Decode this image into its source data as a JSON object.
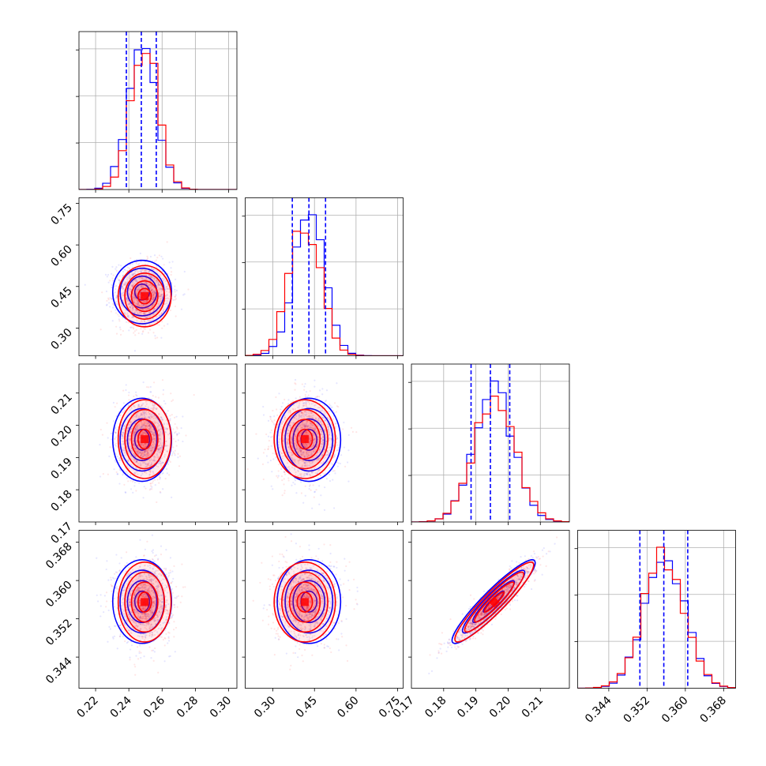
{
  "chart_data": {
    "type": "corner",
    "parameters": [
      {
        "range": [
          0.21,
          0.305
        ],
        "ticks": [
          "0.22",
          "0.24",
          "0.26",
          "0.28",
          "0.30"
        ]
      },
      {
        "range": [
          0.2,
          0.77
        ],
        "ticks": [
          "0.30",
          "0.45",
          "0.60",
          "0.75"
        ]
      },
      {
        "range": [
          0.17,
          0.219
        ],
        "ticks": [
          "0.17",
          "0.18",
          "0.19",
          "0.20",
          "0.21"
        ]
      },
      {
        "range": [
          0.3375,
          0.3705
        ],
        "ticks": [
          "0.344",
          "0.352",
          "0.360",
          "0.368"
        ]
      }
    ],
    "series": [
      {
        "color": "#0000ff",
        "means": [
          0.248,
          0.43,
          0.1955,
          0.3556
        ],
        "sds": [
          0.0085,
          0.055,
          0.0062,
          0.0042
        ],
        "correlations": [
          [
            0,
            0.0,
            0.0,
            0.0
          ],
          [
            0,
            0,
            0.0,
            0.0
          ],
          [
            0,
            0,
            0,
            0.93
          ],
          [
            0,
            0,
            0,
            0
          ]
        ],
        "quantiles": [
          [
            0.2385,
            0.2475,
            0.2565
          ],
          [
            0.37,
            0.43,
            0.49
          ],
          [
            0.1885,
            0.1945,
            0.2005
          ],
          [
            0.3505,
            0.3555,
            0.3605
          ]
        ]
      },
      {
        "color": "#ff0000",
        "means": [
          0.2495,
          0.415,
          0.1957,
          0.3555
        ],
        "sds": [
          0.0082,
          0.057,
          0.0063,
          0.0043
        ],
        "correlations": [
          [
            0,
            0.0,
            0.0,
            0.0
          ],
          [
            0,
            0,
            0.0,
            0.0
          ],
          [
            0,
            0,
            0,
            0.93
          ],
          [
            0,
            0,
            0,
            0
          ]
        ]
      }
    ],
    "histogram_bins": 20,
    "contour_levels": [
      0.5,
      1.0,
      1.5,
      2.0
    ],
    "grid": true
  }
}
